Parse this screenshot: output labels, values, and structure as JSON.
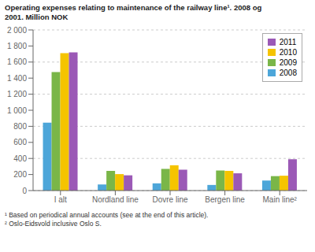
{
  "chart_data": {
    "type": "bar",
    "title": "Operating expenses relating to maintenance of the railway line¹. 2008 og\n2001. Million NOK",
    "categories": [
      "I alt",
      "Nordland line",
      "Dovre line",
      "Bergen line",
      "Main line²"
    ],
    "series": [
      {
        "name": "2008",
        "color": "#4da6d9",
        "values": [
          845,
          75,
          90,
          70,
          125
        ]
      },
      {
        "name": "2009",
        "color": "#7ab648",
        "values": [
          1475,
          245,
          270,
          250,
          180
        ]
      },
      {
        "name": "2010",
        "color": "#f5c400",
        "values": [
          1710,
          205,
          315,
          245,
          185
        ]
      },
      {
        "name": "2011",
        "color": "#9b59b6",
        "values": [
          1720,
          190,
          260,
          215,
          390
        ]
      }
    ],
    "ylim": [
      0,
      2000
    ],
    "yticks": [
      0,
      200,
      400,
      600,
      800,
      {
        "value": 1000,
        "label": "1 000"
      },
      {
        "value": 1200,
        "label": "1 200"
      },
      {
        "value": 1400,
        "label": "1 400"
      },
      {
        "value": 1600,
        "label": "1 600"
      },
      {
        "value": 1800,
        "label": "1 800"
      },
      {
        "value": 2000,
        "label": "2 000"
      }
    ],
    "grid": true,
    "legend": "upper right",
    "annotations": [
      "¹ Based on periodical annual accounts (see at the end of this article).",
      "² Oslo-Eidsvold inclusive Oslo S."
    ]
  }
}
